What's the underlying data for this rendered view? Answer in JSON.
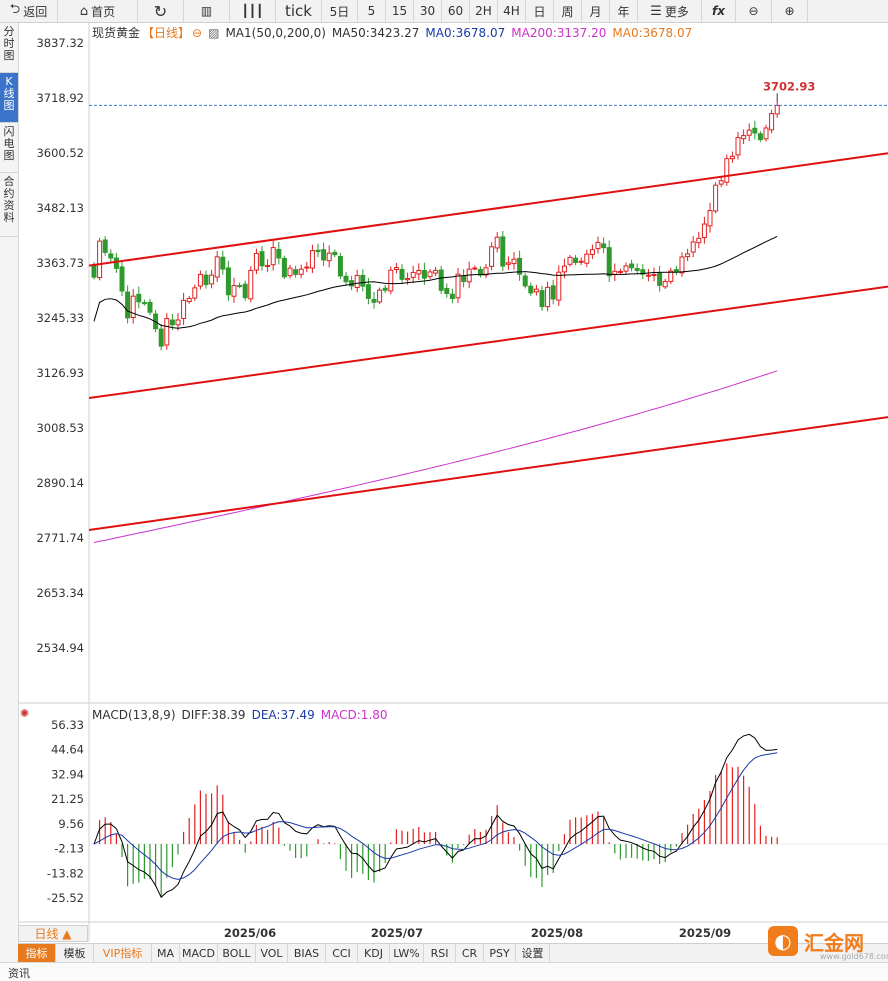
{
  "toolbar": {
    "back": "返回",
    "home": "首页",
    "items": [
      "tick",
      "5日",
      "5",
      "15",
      "30",
      "60",
      "2H",
      "4H",
      "日",
      "周",
      "月",
      "年"
    ],
    "more": "更多",
    "fx": "fx"
  },
  "sidetabs": [
    "分时图",
    "K线图",
    "闪电图",
    "合约资料"
  ],
  "legend": {
    "symbol": "现货黄金",
    "period": "【日线】",
    "ma_name": "MA1(50,0,200,0)",
    "ma50": "MA50:3423.27",
    "ma0": "MA0:3678.07",
    "ma200": "MA200:3137.20",
    "ma0b": "MA0:3678.07"
  },
  "macd_legend": {
    "name": "MACD(13,8,9)",
    "diff": "DIFF:38.39",
    "dea": "DEA:37.49",
    "macd": "MACD:1.80"
  },
  "last_price_label": "3702.93",
  "period_button": "日线 ▲",
  "bottombar": [
    "指标",
    "模板",
    "VIP指标",
    "MA",
    "MACD",
    "BOLL",
    "VOL",
    "BIAS",
    "CCI",
    "KDJ",
    "LW%",
    "RSI",
    "CR",
    "PSY",
    "设置"
  ],
  "footer": "资讯",
  "logo": {
    "name": "汇金网",
    "url": "www.gold678.com"
  },
  "colors": {
    "up": "#e02020",
    "down": "#2e9a2e",
    "ma50": "#000000",
    "ma200": "#cc33cc",
    "channel": "#e01010",
    "price_line": "#3a7ad0"
  },
  "chart_data": [
    {
      "type": "candlestick",
      "title": "现货黄金【日线】",
      "yticks": [
        3837.32,
        3718.92,
        3600.52,
        3482.13,
        3363.73,
        3245.33,
        3126.93,
        3008.53,
        2890.14,
        2771.74,
        2653.34,
        2534.94
      ],
      "ylim": [
        2534.94,
        3837.32
      ],
      "xticks": [
        "2025/06",
        "2025/07",
        "2025/08",
        "2025/09"
      ],
      "last_price": 3702.93,
      "close": [
        3333.2,
        3410.8,
        3386.5,
        3374.5,
        3352.1,
        3303.6,
        3245.6,
        3292.3,
        3280.1,
        3277.3,
        3257.8,
        3222.3,
        3184.8,
        3244.1,
        3230.8,
        3241.0,
        3283.2,
        3287.4,
        3310.2,
        3339.2,
        3317.3,
        3337.6,
        3376.9,
        3350.7,
        3295.4,
        3315.2,
        3314.8,
        3289.1,
        3347.8,
        3384.1,
        3357.8,
        3358.5,
        3396.9,
        3374.5,
        3334.1,
        3352.6,
        3339.3,
        3350.4,
        3355.1,
        3390.4,
        3388.4,
        3370.2,
        3385.0,
        3381.7,
        3335.9,
        3323.4,
        3314.2,
        3337.0,
        3313.8,
        3287.5,
        3279.2,
        3305.4,
        3305.1,
        3348.1,
        3353.9,
        3328.6,
        3330.3,
        3343.4,
        3347.6,
        3331.1,
        3344.5,
        3347.8,
        3304.9,
        3298.1,
        3287.3,
        3339.7,
        3324.0,
        3350.4,
        3352.9,
        3338.0,
        3353.3,
        3398.6,
        3419.2,
        3357.0,
        3364.1,
        3372.0,
        3339.7,
        3314.5,
        3299.3,
        3307.5,
        3269.8,
        3311.3,
        3286.3,
        3343.9,
        3357.0,
        3375.8,
        3364.8,
        3367.4,
        3382.7,
        3392.4,
        3408.1,
        3396.8,
        3336.2,
        3345.8,
        3345.4,
        3357.5,
        3353.5,
        3347.7,
        3339.6,
        3337.5,
        3339.0,
        3315.7,
        3324.0,
        3346.4,
        3344.9,
        3376.7,
        3383.3,
        3409.0,
        3416.8,
        3447.6,
        3476.6,
        3531.2,
        3540.8,
        3588.3,
        3593.4,
        3633.7,
        3638.0,
        3649.7,
        3643.5,
        3629.4,
        3654.3,
        3685.4,
        3702.9
      ]
    },
    {
      "type": "line",
      "title": "MACD(13,8,9)",
      "yticks": [
        56.33,
        44.64,
        32.94,
        21.25,
        9.56,
        -2.13,
        -13.82,
        -25.52
      ],
      "series": [
        {
          "name": "DIFF",
          "last": 38.39
        },
        {
          "name": "DEA",
          "last": 37.49
        },
        {
          "name": "MACD",
          "last": 1.8
        }
      ]
    }
  ]
}
